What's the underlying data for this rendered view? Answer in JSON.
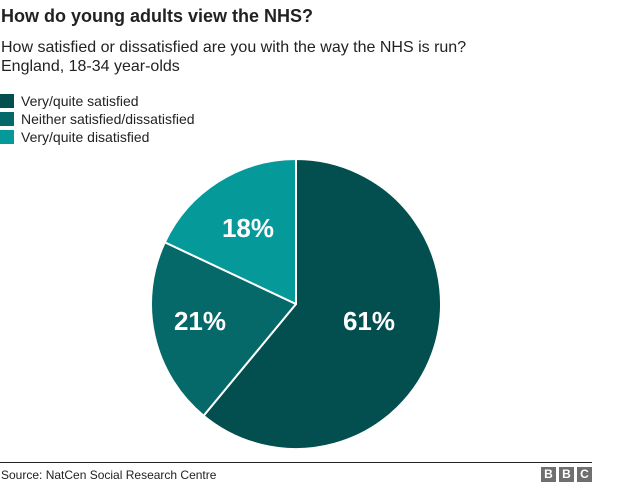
{
  "header": {
    "title": "How do young adults view the NHS?",
    "subtitle_line1": "How satisfied or dissatisfied are you with the way the NHS is run?",
    "subtitle_line2": "England, 18-34 year-olds"
  },
  "legend": {
    "items": [
      {
        "label": "Very/quite satisfied",
        "color": "#034e4e"
      },
      {
        "label": "Neither satisfied/dissatisfied",
        "color": "#05696a"
      },
      {
        "label": "Very/quite disatisfied",
        "color": "#05999a"
      }
    ]
  },
  "pie": {
    "labels": [
      "61%",
      "21%",
      "18%"
    ]
  },
  "footer": {
    "source": "Source: NatCen Social Research Centre",
    "logo_letters": [
      "B",
      "B",
      "C"
    ]
  },
  "chart_data": {
    "type": "pie",
    "title": "How do young adults view the NHS?",
    "subtitle": "How satisfied or dissatisfied are you with the way the NHS is run? England, 18-34 year-olds",
    "categories": [
      "Very/quite satisfied",
      "Neither satisfied/dissatisfied",
      "Very/quite disatisfied"
    ],
    "values": [
      61,
      21,
      18
    ],
    "unit": "%",
    "colors": [
      "#034e4e",
      "#05696a",
      "#05999a"
    ],
    "start_angle": "12 o'clock, clockwise",
    "legend_position": "top-left",
    "source": "Source: NatCen Social Research Centre"
  }
}
